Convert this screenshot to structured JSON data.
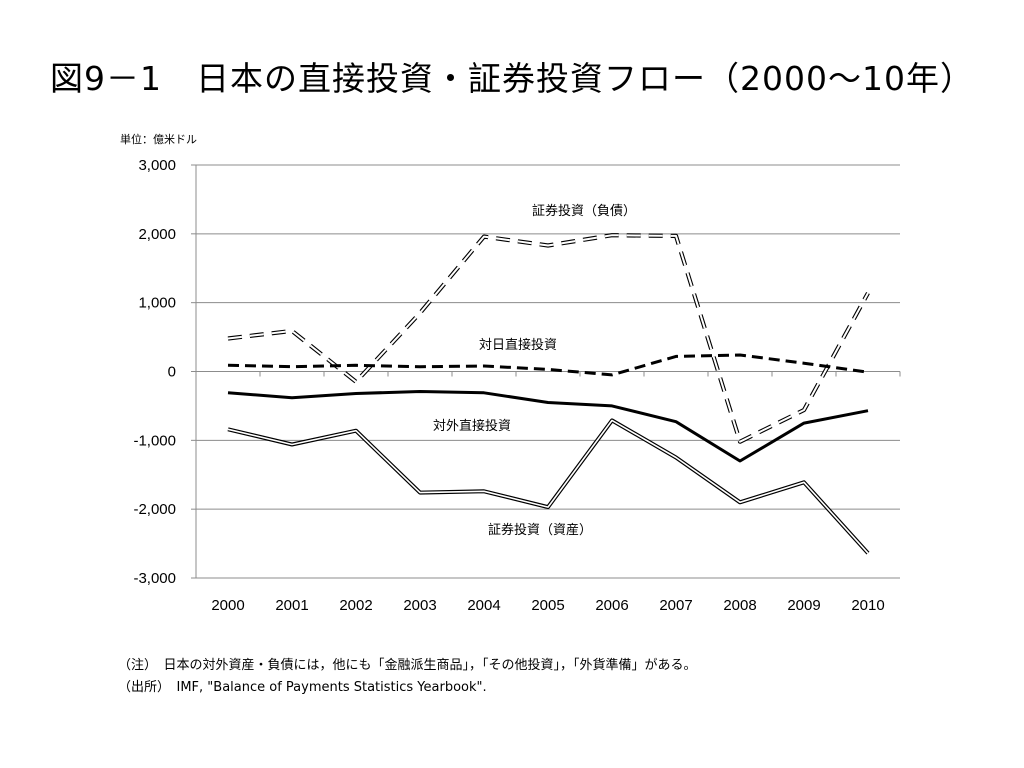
{
  "page": {
    "title": "図9－1　日本の直接投資・証券投資フロー（2000～10年）",
    "notes": [
      "（注）　日本の対外資産・負債には，他にも「金融派生商品」，「その他投資」，「外貨準備」がある。",
      "（出所）　IMF, \"Balance of Payments Statistics Yearbook\"."
    ]
  },
  "chart_data": {
    "type": "line",
    "title": "",
    "unit_label": "単位：億米ドル",
    "xlabel": "",
    "ylabel": "",
    "x": [
      "2000",
      "2001",
      "2002",
      "2003",
      "2004",
      "2005",
      "2006",
      "2007",
      "2008",
      "2009",
      "2010"
    ],
    "ylim": [
      -3000,
      3000
    ],
    "yticks": [
      3000,
      2000,
      1000,
      0,
      -1000,
      -2000,
      -3000
    ],
    "ytick_labels": [
      "3,000",
      "2,000",
      "1,000",
      "0",
      "-1,000",
      "-2,000",
      "-3,000"
    ],
    "grid": true,
    "series": [
      {
        "name": "証券投資（負債）",
        "style": "dashed-double",
        "values": [
          480,
          590,
          -150,
          850,
          1960,
          1830,
          1980,
          1970,
          -1020,
          -560,
          1140
        ]
      },
      {
        "name": "対日直接投資",
        "style": "dashed-bold",
        "values": [
          90,
          70,
          90,
          70,
          80,
          30,
          -50,
          220,
          240,
          120,
          -10
        ]
      },
      {
        "name": "対外直接投資",
        "style": "solid-bold",
        "values": [
          -310,
          -380,
          -320,
          -290,
          -310,
          -450,
          -500,
          -730,
          -1300,
          -750,
          -570
        ]
      },
      {
        "name": "証券投資（資産）",
        "style": "solid-double",
        "values": [
          -840,
          -1060,
          -860,
          -1760,
          -1740,
          -1970,
          -710,
          -1250,
          -1900,
          -1610,
          -2640
        ]
      }
    ],
    "colors": {
      "line": "#000000",
      "grid": "#8c8c8c",
      "axis": "#8c8c8c"
    }
  }
}
